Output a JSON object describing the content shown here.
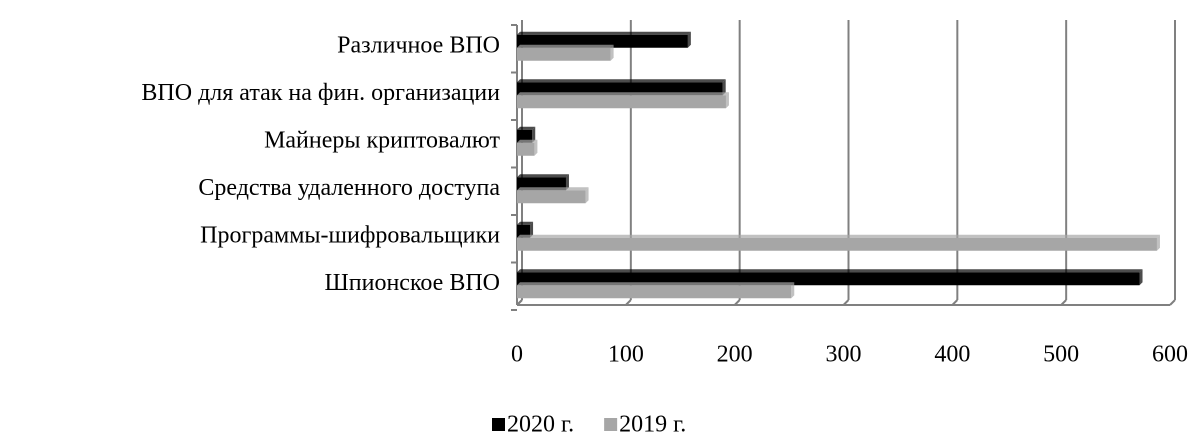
{
  "chart_data": {
    "type": "bar",
    "orientation": "horizontal",
    "categories": [
      "Различное ВПО",
      "ВПО для атак на фин. организации",
      "Майнеры криптовалют",
      "Средства удаленного доступа",
      "Программы-шифровальщики",
      "Шпионское ВПО"
    ],
    "series": [
      {
        "name": "2020 г.",
        "color": "#000000",
        "values": [
          157,
          189,
          14,
          45,
          12,
          572
        ]
      },
      {
        "name": "2019 г.",
        "color": "#a6a6a6",
        "values": [
          86,
          192,
          16,
          63,
          588,
          252
        ]
      }
    ],
    "xlim": [
      0,
      600
    ],
    "xticks": [
      0,
      100,
      200,
      300,
      400,
      500,
      600
    ],
    "grid": true,
    "legend": "bottom"
  }
}
